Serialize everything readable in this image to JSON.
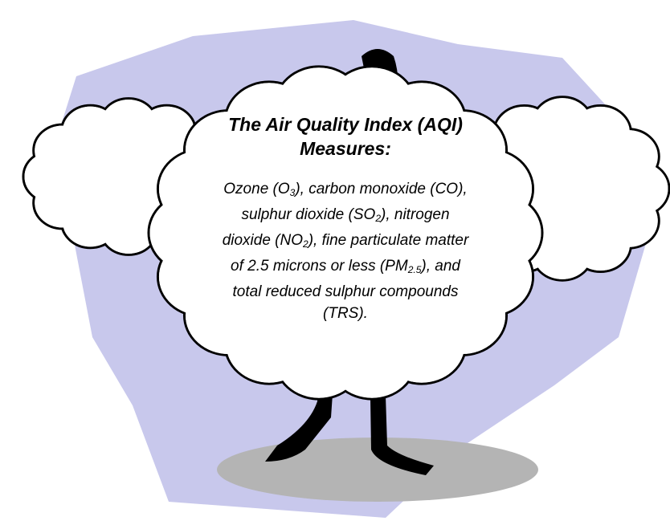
{
  "title": {
    "lines": [
      "The Air Quality Index (AQI)",
      "Measures:"
    ]
  },
  "body": {
    "lines": [
      [
        "Ozone (O",
        "3",
        "), carbon monoxide (CO),"
      ],
      [
        "sulphur dioxide (SO",
        "2",
        "), nitrogen"
      ],
      [
        "dioxide (NO",
        "2",
        "), fine particulate matter"
      ],
      [
        "of 2.5 microns or less (PM",
        "2.5",
        "), and"
      ],
      [
        "total reduced sulphur compounds"
      ],
      [
        "(TRS)."
      ]
    ]
  }
}
